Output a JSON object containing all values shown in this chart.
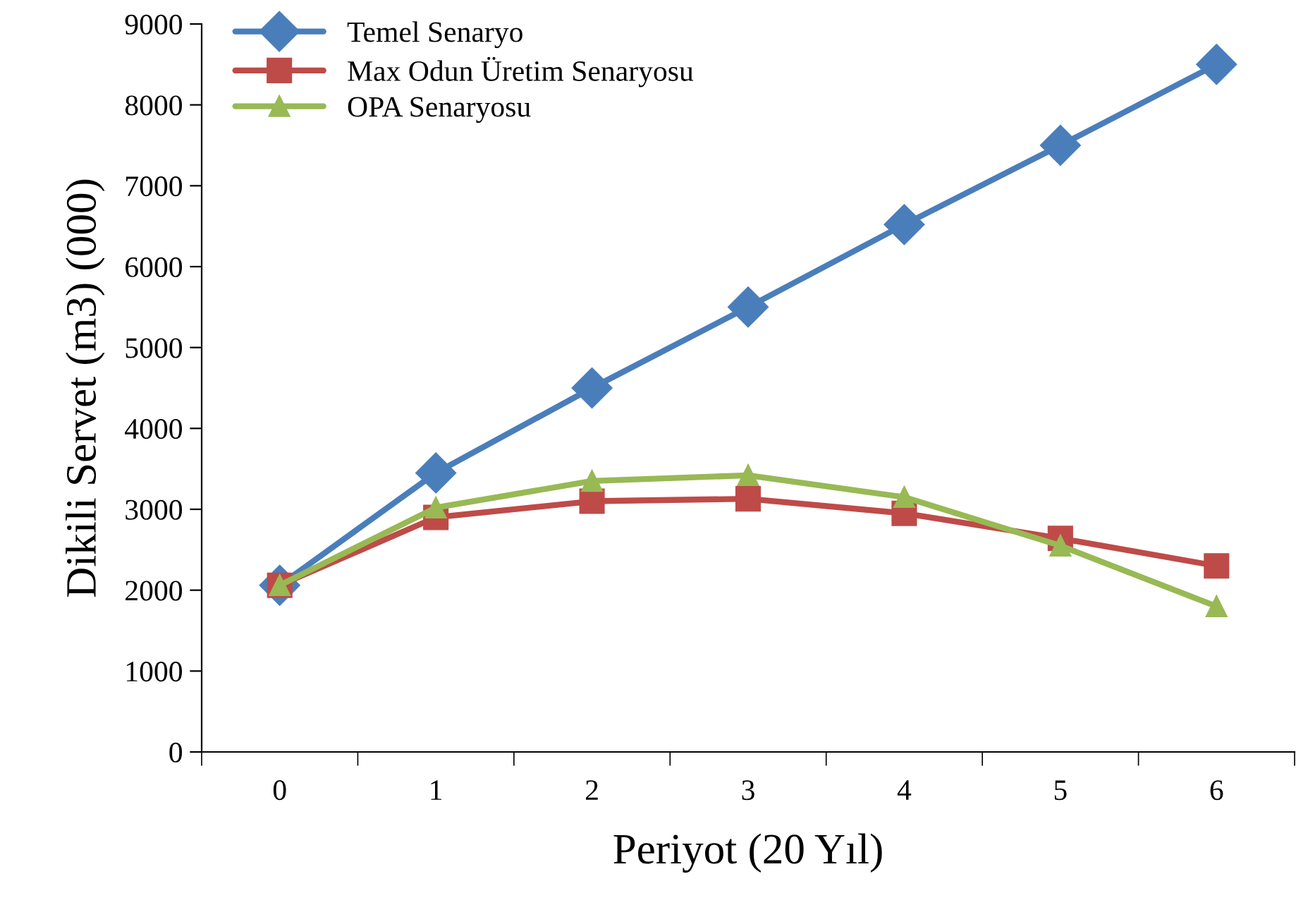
{
  "chart_data": {
    "type": "line",
    "xlabel": "Periyot (20 Yıl)",
    "ylabel": "Dikili Servet (m3) (000)",
    "categories": [
      "0",
      "1",
      "2",
      "3",
      "4",
      "5",
      "6"
    ],
    "series": [
      {
        "name": "Temel Senaryo",
        "color": "#4a7ebb",
        "marker": "diamond",
        "values": [
          2060,
          3450,
          4500,
          5500,
          6520,
          7500,
          8500
        ]
      },
      {
        "name": "Max Odun Üretim Senaryosu",
        "color": "#be4b48",
        "marker": "square",
        "values": [
          2060,
          2900,
          3100,
          3130,
          2950,
          2640,
          2300
        ]
      },
      {
        "name": "OPA Senaryosu",
        "color": "#98b954",
        "marker": "triangle",
        "values": [
          2060,
          3020,
          3350,
          3420,
          3150,
          2550,
          1800
        ]
      }
    ],
    "ylim": [
      0,
      9000
    ],
    "yticks": [
      0,
      1000,
      2000,
      3000,
      4000,
      5000,
      6000,
      7000,
      8000,
      9000
    ],
    "grid": false,
    "legend": "top left",
    "line_style": "solid"
  }
}
